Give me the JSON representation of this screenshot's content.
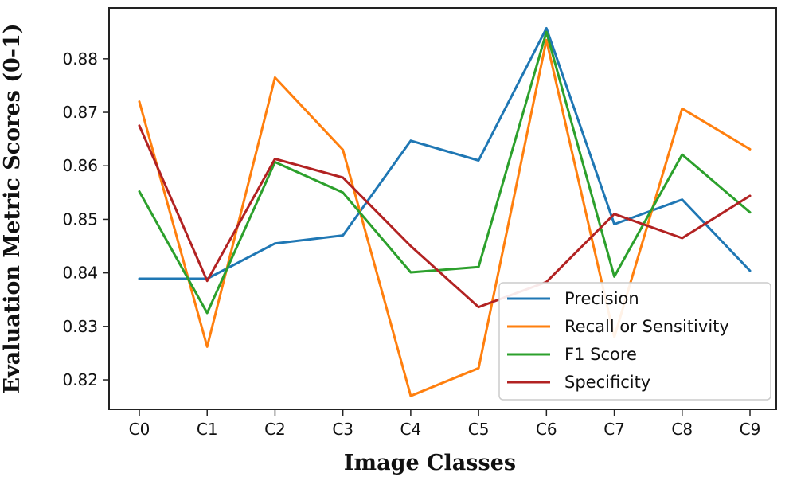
{
  "chart_data": {
    "type": "line",
    "title": "",
    "xlabel": "Image Classes",
    "ylabel": "Evaluation Metric Scores (0-1)",
    "categories": [
      "C0",
      "C1",
      "C2",
      "C3",
      "C4",
      "C5",
      "C6",
      "C7",
      "C8",
      "C9"
    ],
    "ylim": [
      0.8145,
      0.8895
    ],
    "yticks": [
      0.82,
      0.83,
      0.84,
      0.85,
      0.86,
      0.87,
      0.88
    ],
    "legend_position": "bottom-right",
    "grid": false,
    "series": [
      {
        "name": "Precision",
        "color": "#1f77b4",
        "values": [
          0.8389,
          0.8389,
          0.8455,
          0.847,
          0.8647,
          0.861,
          0.8857,
          0.8491,
          0.8537,
          0.8404
        ]
      },
      {
        "name": "Recall or Sensitivity",
        "color": "#ff7f0e",
        "values": [
          0.872,
          0.8262,
          0.8765,
          0.863,
          0.817,
          0.8222,
          0.8835,
          0.828,
          0.8707,
          0.8631
        ]
      },
      {
        "name": "F1 Score",
        "color": "#2ca02c",
        "values": [
          0.8552,
          0.8325,
          0.8607,
          0.855,
          0.8401,
          0.8411,
          0.885,
          0.8393,
          0.8621,
          0.8513
        ]
      },
      {
        "name": "Specificity",
        "color": "#b22222",
        "values": [
          0.8675,
          0.8385,
          0.8613,
          0.8578,
          0.845,
          0.8336,
          0.8383,
          0.851,
          0.8465,
          0.8544
        ]
      }
    ]
  }
}
